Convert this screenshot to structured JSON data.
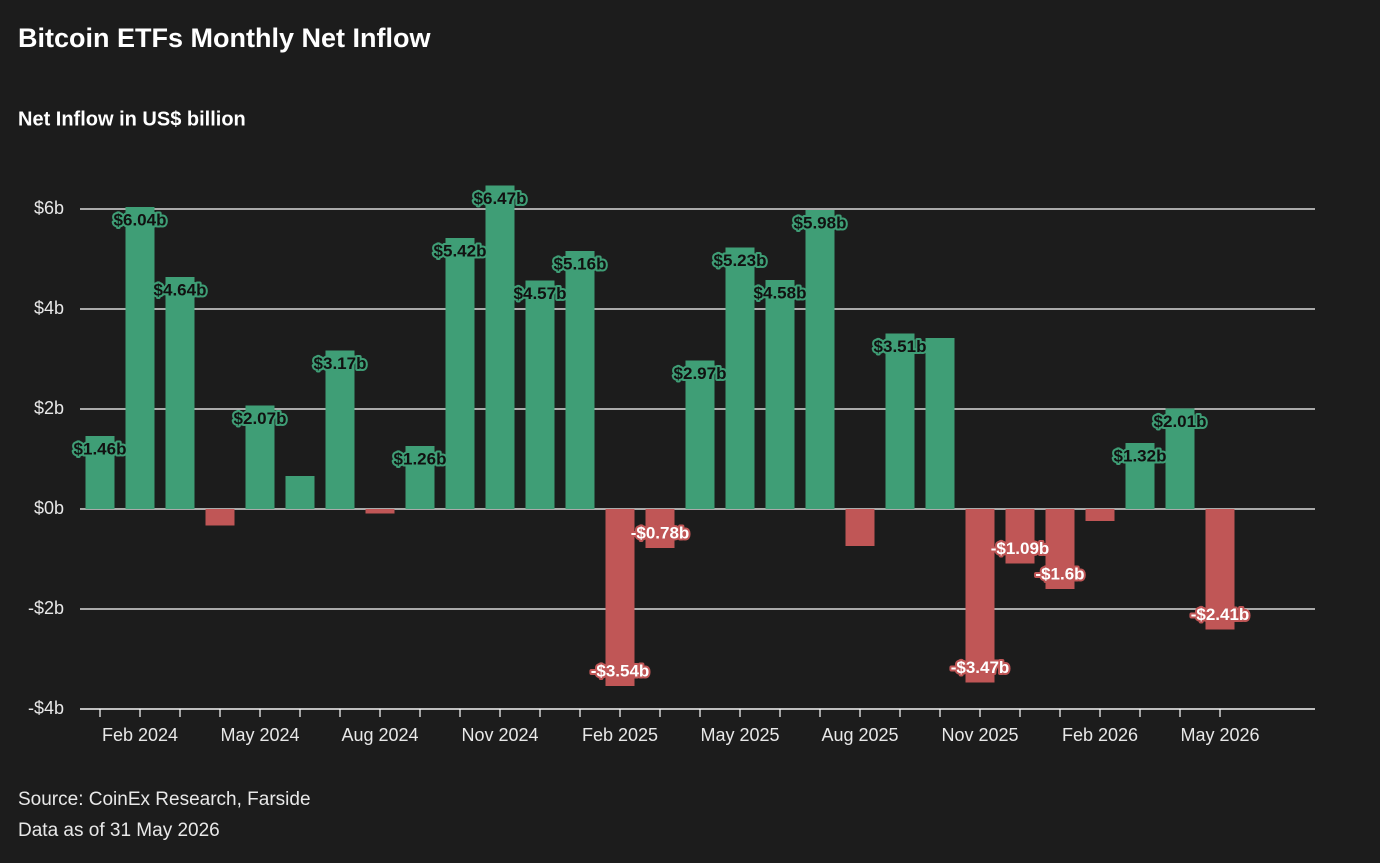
{
  "chart_data": {
    "type": "bar",
    "title": "Bitcoin ETFs Monthly Net Inflow",
    "subtitle": "Net Inflow in US$ billion",
    "notes": [
      "Source: CoinEx Research, Farside",
      "Data as of 31 May 2026"
    ],
    "categories": [
      null,
      "Feb 2024",
      null,
      null,
      "May 2024",
      null,
      null,
      "Aug 2024",
      null,
      null,
      "Nov 2024",
      null,
      null,
      "Feb 2025",
      null,
      null,
      "May 2025",
      null,
      null,
      "Aug 2025",
      null,
      null,
      "Nov 2025",
      null,
      null,
      "Feb 2026",
      null,
      null,
      "May 2026"
    ],
    "values": [
      1.46,
      6.04,
      4.64,
      -0.33,
      2.07,
      0.66,
      3.17,
      -0.09,
      1.26,
      5.42,
      6.47,
      4.57,
      5.16,
      -3.54,
      -0.78,
      2.97,
      5.23,
      4.58,
      5.98,
      -0.74,
      3.51,
      3.42,
      -3.47,
      -1.09,
      -1.6,
      -0.24,
      1.32,
      2.01,
      -2.41
    ],
    "value_labels": [
      "$1.46b",
      "$6.04b",
      "$4.64b",
      null,
      "$2.07b",
      null,
      "$3.17b",
      null,
      "$1.26b",
      "$5.42b",
      "$6.47b",
      "$4.57b",
      "$5.16b",
      "-$3.54b",
      "-$0.78b",
      "$2.97b",
      "$5.23b",
      "$4.58b",
      "$5.98b",
      null,
      "$3.51b",
      null,
      "-$3.47b",
      "-$1.09b",
      "-$1.6b",
      null,
      "$1.32b",
      "$2.01b",
      "-$2.41b"
    ],
    "positive_color": "#3f9e76",
    "negative_color": "#c05656",
    "ylim": [
      -4,
      6.6
    ],
    "yticks": [
      {
        "value": -4,
        "label": "-$4b"
      },
      {
        "value": -2,
        "label": "-$2b"
      },
      {
        "value": 0,
        "label": "$0b"
      },
      {
        "value": 2,
        "label": "$2b"
      },
      {
        "value": 4,
        "label": "$4b"
      },
      {
        "value": 6,
        "label": "$6b"
      }
    ],
    "grid": true
  }
}
